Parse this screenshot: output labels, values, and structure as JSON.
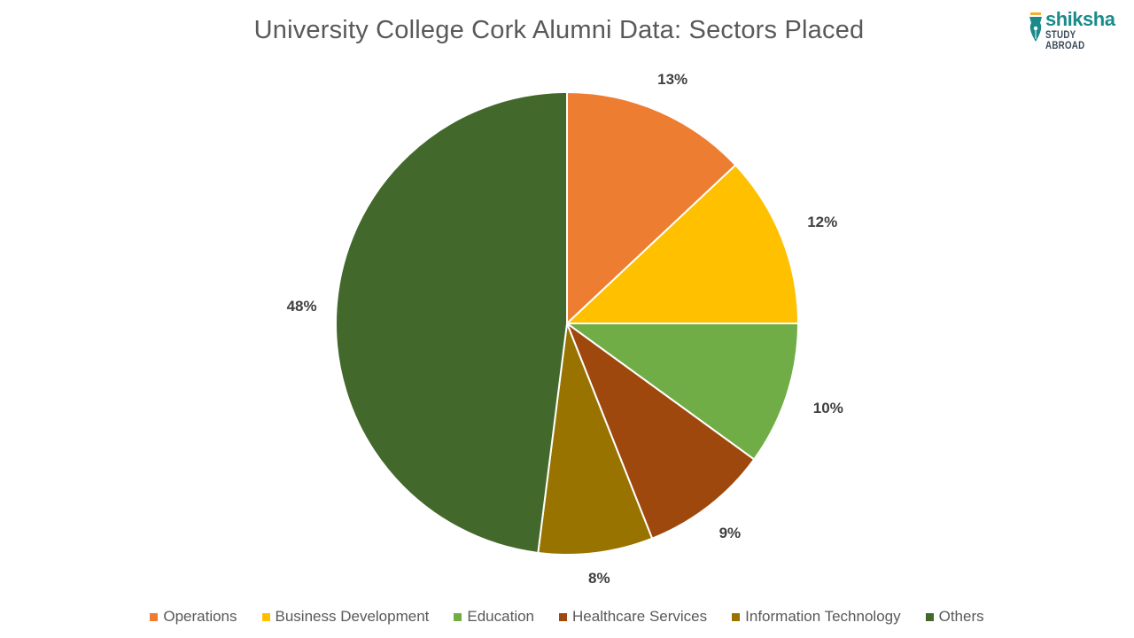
{
  "header": {
    "title": "University College Cork Alumni Data: Sectors Placed",
    "logo": {
      "brand": "shiksha",
      "tagline": "STUDY ABROAD",
      "icon": "pen-nib-icon"
    }
  },
  "chart_data": {
    "type": "pie",
    "title": "University College Cork Alumni Data: Sectors Placed",
    "categories": [
      "Operations",
      "Business Development",
      "Education",
      "Healthcare Services",
      "Information Technology",
      "Others"
    ],
    "values": [
      13,
      12,
      10,
      9,
      8,
      48
    ],
    "labels": [
      "13%",
      "12%",
      "10%",
      "9%",
      "8%",
      "48%"
    ],
    "colors": [
      "#ED7D31",
      "#FFC000",
      "#70AD47",
      "#9E480E",
      "#997300",
      "#43682B"
    ],
    "start_angle": "12 o'clock",
    "direction": "clockwise",
    "legend_position": "bottom",
    "unit": "%"
  }
}
